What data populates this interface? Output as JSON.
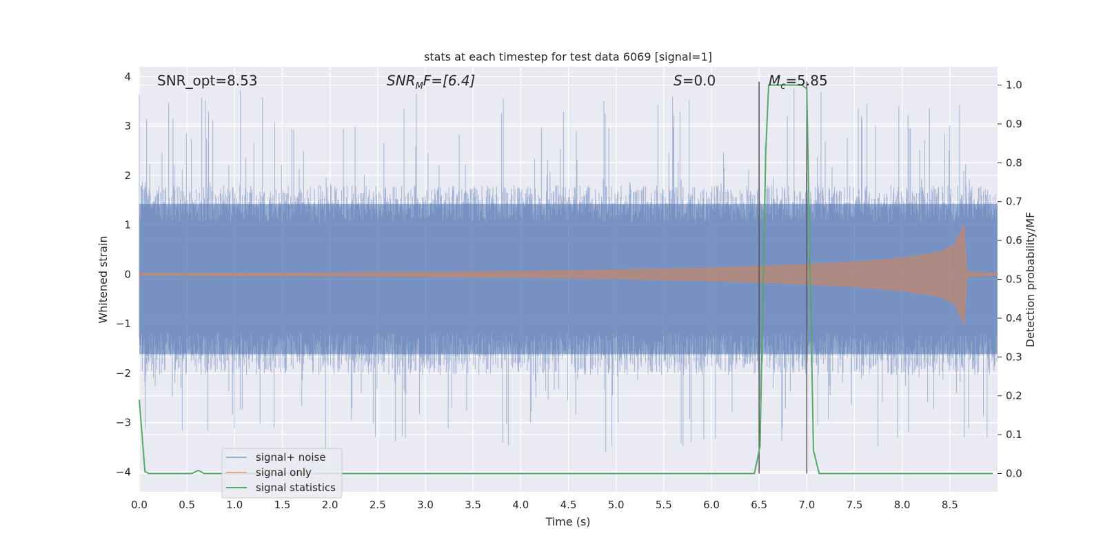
{
  "chart_data": {
    "type": "line",
    "title": "stats at each timestep for test data 6069 [signal=1]",
    "xlabel": "Time (s)",
    "ylabel": "Whitened strain",
    "ylabel_right": "Detection probability/MF",
    "xlim": [
      0.0,
      9.0
    ],
    "ylim": [
      -4.4,
      4.2
    ],
    "ylim_right": [
      -0.047,
      1.047
    ],
    "x_ticks": [
      0.0,
      0.5,
      1.0,
      1.5,
      2.0,
      2.5,
      3.0,
      3.5,
      4.0,
      4.5,
      5.0,
      5.5,
      6.0,
      6.5,
      7.0,
      7.5,
      8.0,
      8.5
    ],
    "x_tick_labels": [
      "0.0",
      "0.5",
      "1.0",
      "1.5",
      "2.0",
      "2.5",
      "3.0",
      "3.5",
      "4.0",
      "4.5",
      "5.0",
      "5.5",
      "6.0",
      "6.5",
      "7.0",
      "7.5",
      "8.0",
      "8.5"
    ],
    "y_ticks": [
      -4,
      -3,
      -2,
      -1,
      0,
      1,
      2,
      3,
      4
    ],
    "y_tick_labels": [
      "−4",
      "−3",
      "−2",
      "−1",
      "0",
      "1",
      "2",
      "3",
      "4"
    ],
    "y_ticks_right": [
      0.0,
      0.1,
      0.2,
      0.3,
      0.4,
      0.5,
      0.6,
      0.7,
      0.8,
      0.9,
      1.0
    ],
    "y_tick_labels_right": [
      "0.0",
      "0.1",
      "0.2",
      "0.3",
      "0.4",
      "0.5",
      "0.6",
      "0.7",
      "0.8",
      "0.9",
      "1.0"
    ],
    "grid": true,
    "legend_position": "lower-left",
    "annotations": {
      "snr_opt": "SNR_opt=8.53",
      "snr_mf_main": "SNR",
      "snr_mf_sub": "M",
      "snr_mf_rest": "F=[6.4]",
      "s_main": "S",
      "s_rest": "=0.0",
      "mc_main": "M",
      "mc_sub": "c",
      "mc_rest": "=5.85"
    },
    "vertical_lines_x": [
      6.5,
      7.0
    ],
    "series": [
      {
        "name": "signal+ noise",
        "color": "#4c72b0",
        "kind": "noise band",
        "typical_range": [
          -1.7,
          1.5
        ],
        "extreme_range": [
          -3.6,
          3.85
        ]
      },
      {
        "name": "signal only",
        "color": "#dd8452",
        "kind": "chirp envelope",
        "envelope": {
          "x": [
            0.0,
            2.0,
            4.0,
            5.0,
            6.0,
            6.5,
            7.0,
            7.5,
            8.0,
            8.4,
            8.55,
            8.65,
            8.68,
            9.0
          ],
          "amplitude": [
            0.02,
            0.03,
            0.06,
            0.09,
            0.13,
            0.16,
            0.2,
            0.25,
            0.33,
            0.45,
            0.6,
            1.0,
            0.05,
            0.02
          ]
        }
      },
      {
        "name": "signal statistics",
        "color": "#55a868",
        "axis": "right",
        "x": [
          0.0,
          0.06,
          0.1,
          0.55,
          0.62,
          0.68,
          6.45,
          6.51,
          6.57,
          6.6,
          6.95,
          7.0,
          7.07,
          7.13,
          8.95
        ],
        "y": [
          0.19,
          0.005,
          0.0,
          0.0,
          0.008,
          0.0,
          0.0,
          0.07,
          0.83,
          1.0,
          1.0,
          0.99,
          0.06,
          0.0,
          0.0
        ]
      }
    ]
  }
}
